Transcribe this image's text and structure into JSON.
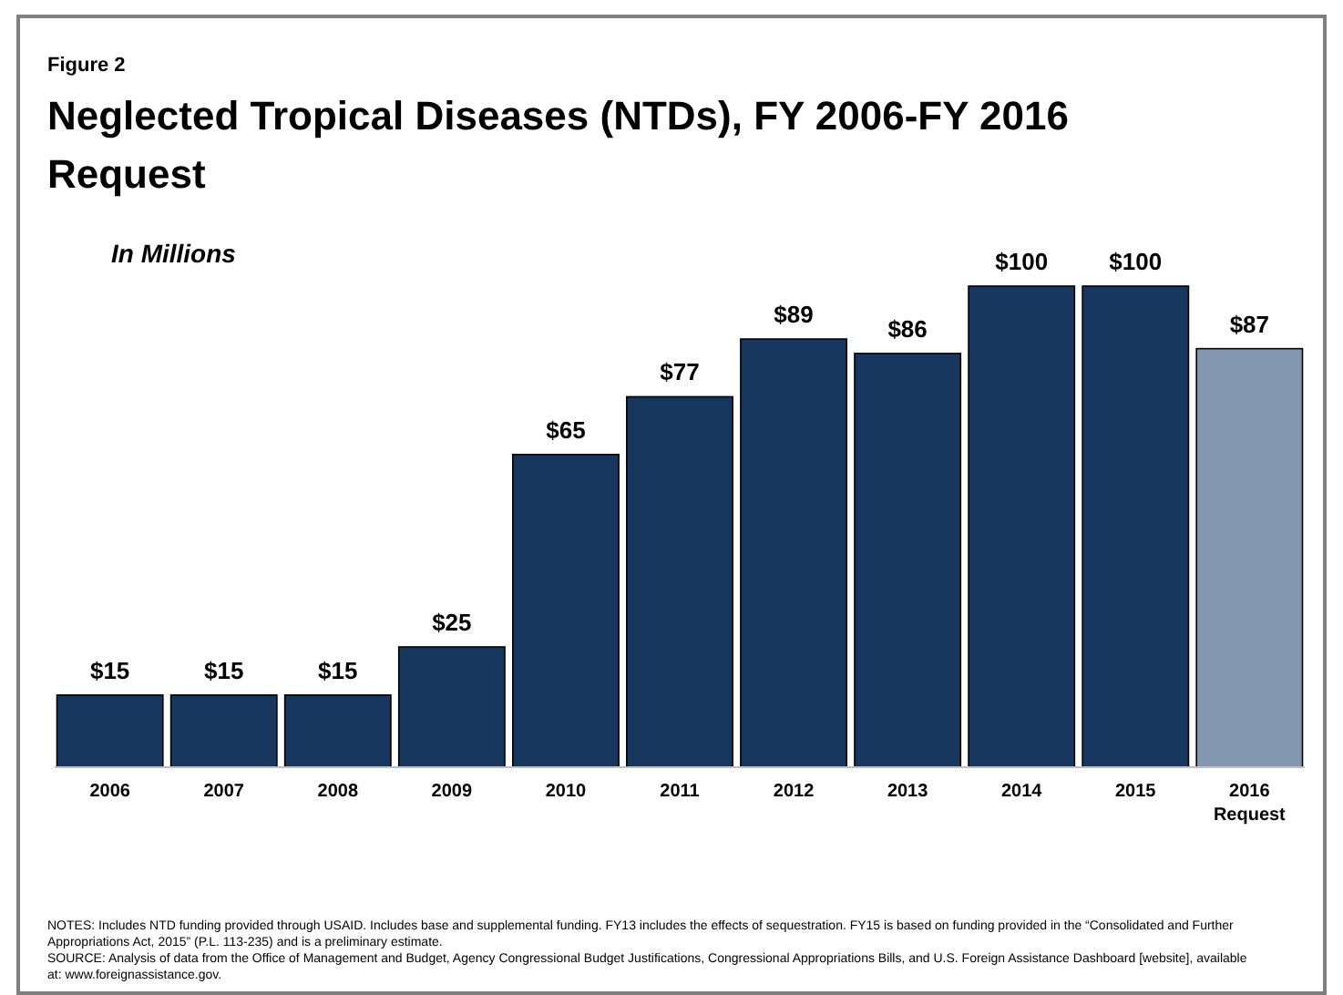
{
  "chart_data": {
    "type": "bar",
    "subtitle": "Figure 2",
    "title": "Neglected Tropical Diseases (NTDs), FY 2006-FY 2016 Request",
    "ylabel": "In Millions",
    "categories": [
      "2006",
      "2007",
      "2008",
      "2009",
      "2010",
      "2011",
      "2012",
      "2013",
      "2014",
      "2015",
      "2016 Request"
    ],
    "values": [
      15,
      15,
      15,
      25,
      65,
      77,
      89,
      86,
      100,
      100,
      87
    ],
    "colors": [
      "#17375e",
      "#17375e",
      "#17375e",
      "#17375e",
      "#17375e",
      "#17375e",
      "#17375e",
      "#17375e",
      "#17375e",
      "#17375e",
      "#8497b0"
    ],
    "value_labels": [
      "$15",
      "$15",
      "$15",
      "$25",
      "$65",
      "$77",
      "$89",
      "$86",
      "$100",
      "$100",
      "$87"
    ],
    "annotations": [
      "NOTES: Includes NTD funding provided through USAID. Includes base and supplemental funding. FY13 includes the effects of sequestration. FY15 is based on funding provided in the “Consolidated and Further Appropriations Act, 2015” (P.L. 113-235) and is a preliminary estimate.",
      "SOURCE: Analysis of data from the Office of Management and Budget, Agency Congressional Budget Justifications, Congressional Appropriations Bills, and U.S. Foreign Assistance Dashboard [website], available at: www.foreignassistance.gov."
    ]
  }
}
